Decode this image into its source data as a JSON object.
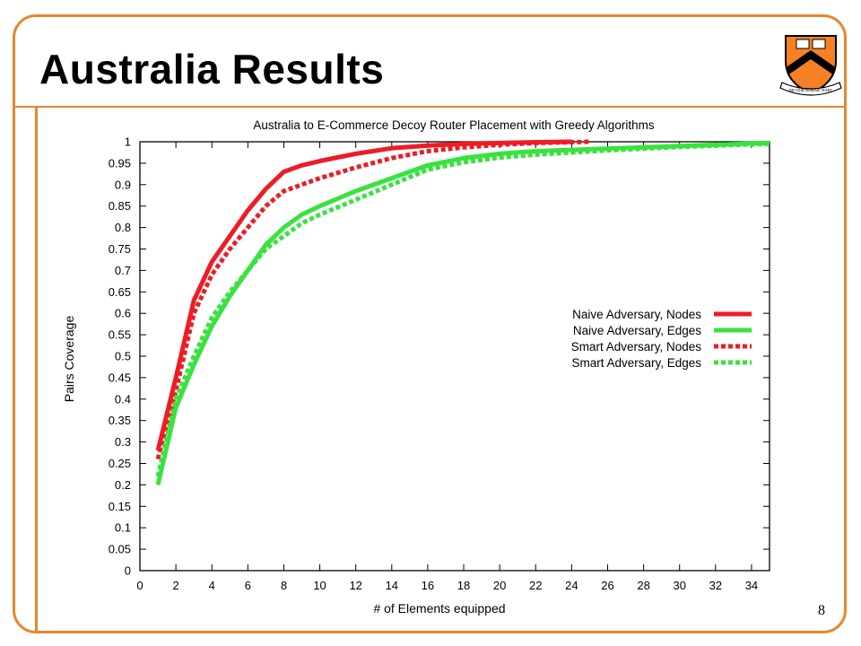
{
  "slide": {
    "title": "Australia Results",
    "page_number": "8",
    "colors": {
      "accent": "#e8862a",
      "shield": "#f58025"
    },
    "logo": {
      "name": "princeton-shield",
      "text": "DEI SUB NUMINE VIGET"
    }
  },
  "chart_data": {
    "type": "line",
    "title": "Australia to E-Commerce Decoy Router Placement with Greedy Algorithms",
    "xlabel": "# of Elements equipped",
    "ylabel": "Pairs Coverage",
    "xlim": [
      0,
      35
    ],
    "ylim": [
      0,
      1
    ],
    "xticks": [
      0,
      2,
      4,
      6,
      8,
      10,
      12,
      14,
      16,
      18,
      20,
      22,
      24,
      26,
      28,
      30,
      32,
      34
    ],
    "yticks": [
      "0",
      "0.05",
      "0.1",
      "0.15",
      "0.2",
      "0.25",
      "0.3",
      "0.35",
      "0.4",
      "0.45",
      "0.5",
      "0.55",
      "0.6",
      "0.65",
      "0.7",
      "0.75",
      "0.8",
      "0.85",
      "0.9",
      "0.95",
      "1"
    ],
    "grid": false,
    "legend_position": "center-right",
    "series": [
      {
        "name": "Naive Adversary, Nodes",
        "color": "#ee1c25",
        "dashed": false,
        "x": [
          1,
          2,
          3,
          4,
          5,
          6,
          7,
          8,
          9,
          10,
          12,
          14,
          16,
          18,
          20,
          22,
          24
        ],
        "y": [
          0.28,
          0.45,
          0.63,
          0.72,
          0.78,
          0.84,
          0.89,
          0.93,
          0.945,
          0.955,
          0.972,
          0.985,
          0.991,
          0.995,
          0.997,
          0.999,
          1.0
        ]
      },
      {
        "name": "Naive Adversary, Edges",
        "color": "#39e33f",
        "dashed": false,
        "x": [
          1,
          2,
          3,
          4,
          5,
          6,
          7,
          8,
          9,
          10,
          12,
          14,
          16,
          18,
          20,
          22,
          24,
          26,
          28,
          30,
          32,
          34,
          35
        ],
        "y": [
          0.2,
          0.38,
          0.48,
          0.57,
          0.64,
          0.7,
          0.76,
          0.8,
          0.83,
          0.85,
          0.885,
          0.915,
          0.945,
          0.962,
          0.972,
          0.978,
          0.981,
          0.984,
          0.987,
          0.99,
          0.993,
          0.996,
          0.997
        ]
      },
      {
        "name": "Smart Adversary, Nodes",
        "color": "#ee1c25",
        "dashed": true,
        "x": [
          1,
          2,
          3,
          4,
          5,
          6,
          7,
          8,
          9,
          10,
          12,
          14,
          16,
          18,
          20,
          22,
          24,
          25
        ],
        "y": [
          0.26,
          0.42,
          0.6,
          0.69,
          0.75,
          0.8,
          0.85,
          0.885,
          0.9,
          0.915,
          0.94,
          0.962,
          0.978,
          0.987,
          0.993,
          0.997,
          0.999,
          1.0
        ]
      },
      {
        "name": "Smart Adversary, Edges",
        "color": "#39e33f",
        "dashed": true,
        "x": [
          1,
          2,
          3,
          4,
          5,
          6,
          7,
          8,
          9,
          10,
          12,
          14,
          16,
          18,
          20,
          22,
          24,
          26,
          28,
          30,
          32,
          34,
          35
        ],
        "y": [
          0.22,
          0.4,
          0.5,
          0.59,
          0.65,
          0.7,
          0.75,
          0.78,
          0.81,
          0.83,
          0.865,
          0.9,
          0.935,
          0.952,
          0.963,
          0.97,
          0.975,
          0.98,
          0.984,
          0.988,
          0.991,
          0.994,
          0.995
        ]
      }
    ]
  }
}
